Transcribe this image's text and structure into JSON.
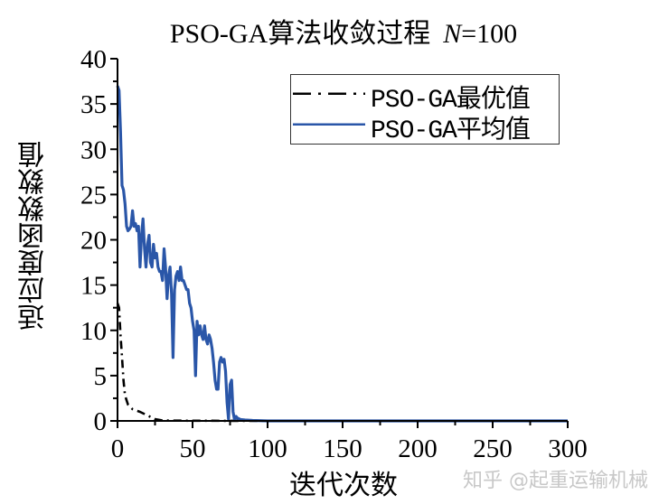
{
  "chart_data": {
    "type": "line",
    "title": "PSO-GA算法收敛过程",
    "title_param": "N=100",
    "title_param_var": "N",
    "title_param_value": "=100",
    "xlabel": "迭代次数",
    "ylabel": "适应度函数数值",
    "xlim": [
      0,
      300
    ],
    "ylim": [
      0,
      40
    ],
    "x_ticks": [
      0,
      50,
      100,
      150,
      200,
      250,
      300
    ],
    "y_ticks": [
      0,
      5,
      10,
      15,
      20,
      25,
      30,
      35,
      40
    ],
    "grid": false,
    "legend_position": "upper right",
    "series": [
      {
        "name": "PSO-GA最优值",
        "style": "dash-dot",
        "color": "#000000",
        "x": [
          0,
          1,
          2,
          3,
          4,
          5,
          7,
          10,
          15,
          20,
          25,
          30,
          40,
          50,
          60,
          70,
          80,
          100,
          150,
          200,
          250,
          300
        ],
        "y": [
          13.0,
          12.5,
          9.5,
          7.0,
          4.5,
          2.8,
          1.8,
          1.3,
          1.0,
          0.6,
          0.2,
          0.05,
          0.03,
          0.02,
          0.02,
          0.01,
          0.01,
          0.0,
          0.0,
          0.0,
          0.0,
          0.0
        ]
      },
      {
        "name": "PSO-GA平均值",
        "style": "solid",
        "color": "#2a56a8",
        "x": [
          0,
          1,
          2,
          3,
          4,
          5,
          6,
          7,
          8,
          9,
          10,
          11,
          12,
          13,
          14,
          15,
          16,
          17,
          18,
          19,
          20,
          21,
          22,
          23,
          24,
          25,
          26,
          27,
          28,
          29,
          30,
          31,
          32,
          33,
          34,
          35,
          36,
          37,
          38,
          39,
          40,
          41,
          42,
          43,
          44,
          45,
          46,
          47,
          48,
          49,
          50,
          51,
          52,
          53,
          54,
          55,
          56,
          57,
          58,
          59,
          60,
          61,
          62,
          63,
          64,
          65,
          66,
          67,
          68,
          69,
          70,
          71,
          72,
          73,
          74,
          75,
          76,
          77,
          78,
          79,
          80,
          82,
          85,
          90,
          100,
          150,
          200,
          250,
          300
        ],
        "y": [
          37.0,
          36.5,
          32.0,
          26.0,
          25.5,
          24.0,
          21.5,
          21.0,
          21.2,
          21.5,
          23.2,
          21.5,
          21.8,
          21.0,
          21.5,
          17.0,
          20.5,
          22.3,
          19.0,
          17.0,
          19.5,
          20.5,
          17.5,
          17.0,
          19.5,
          18.0,
          18.5,
          17.0,
          16.5,
          16.5,
          15.5,
          19.0,
          17.0,
          13.5,
          16.0,
          17.0,
          14.0,
          7.0,
          14.5,
          16.0,
          16.5,
          15.5,
          17.0,
          15.5,
          15.5,
          15.0,
          14.5,
          14.5,
          13.0,
          12.5,
          11.0,
          10.0,
          5.0,
          11.0,
          9.5,
          10.5,
          9.5,
          9.0,
          10.5,
          9.0,
          8.5,
          9.5,
          9.0,
          8.0,
          6.5,
          4.5,
          3.5,
          3.5,
          6.5,
          7.0,
          6.5,
          6.8,
          5.5,
          2.0,
          0.2,
          4.0,
          4.5,
          1.0,
          0.1,
          0.5,
          0.3,
          0.15,
          0.1,
          0.05,
          0.0,
          0.0,
          0.0,
          0.0,
          0.0
        ]
      }
    ]
  },
  "watermark": "知乎 @起重运输机械"
}
